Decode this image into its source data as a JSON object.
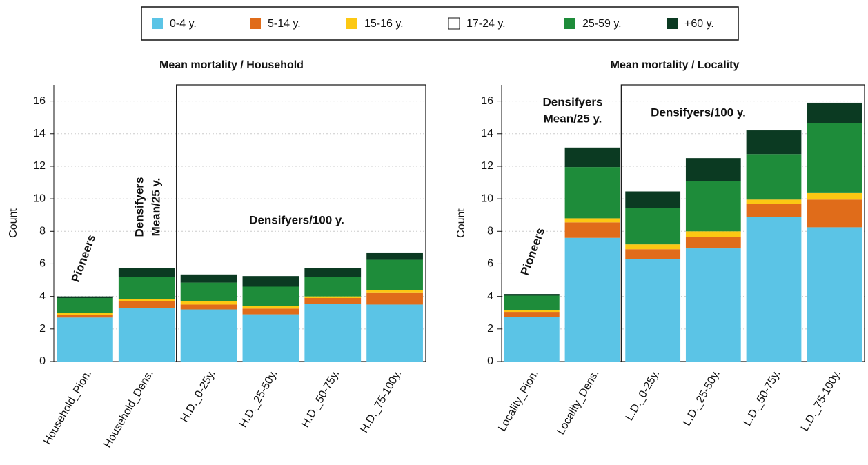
{
  "chart_data": [
    {
      "type": "stacked-bar",
      "title": "Mean mortality / Household",
      "ylabel": "Count",
      "categories": [
        "Household_Pion.",
        "Household_Dens.",
        "H.D._0-25y.",
        "H.D._25-50y.",
        "H.D._50-75y.",
        "H.D._75-100y."
      ],
      "series": [
        {
          "name": "0-4 y.",
          "color": "#5bc4e6",
          "values": [
            2.7,
            3.3,
            3.2,
            2.9,
            3.55,
            3.5
          ]
        },
        {
          "name": "5-14 y.",
          "color": "#e06c1a",
          "values": [
            0.15,
            0.4,
            0.3,
            0.35,
            0.35,
            0.75
          ]
        },
        {
          "name": "15-16 y.",
          "color": "#fcc813",
          "values": [
            0.15,
            0.15,
            0.2,
            0.15,
            0.1,
            0.15
          ]
        },
        {
          "name": "17-24 y.",
          "color": "#ffffff",
          "values": [
            0,
            0,
            0,
            0,
            0,
            0
          ]
        },
        {
          "name": "25-59 y.",
          "color": "#1e8c3a",
          "values": [
            0.9,
            1.35,
            1.15,
            1.2,
            1.2,
            1.85
          ]
        },
        {
          "name": "+60 y.",
          "color": "#0b3a22",
          "values": [
            0.1,
            0.55,
            0.5,
            0.65,
            0.55,
            0.45
          ]
        }
      ],
      "ylim": [
        0,
        17
      ],
      "yticks": [
        0,
        2,
        4,
        6,
        8,
        10,
        12,
        14,
        16
      ],
      "grid": true,
      "annotations": [
        [
          "Pioneers"
        ],
        [
          "Densifyers",
          "Mean/25 y."
        ],
        [
          "Densifyers/100 y."
        ]
      ]
    },
    {
      "type": "stacked-bar",
      "title": "Mean mortality / Locality",
      "ylabel": "Count",
      "categories": [
        "Locality_Pion.",
        "Locality_Dens.",
        "L.D._0-25y.",
        "L.D._25-50y.",
        "L.D._50-75y.",
        "L.D._75-100y."
      ],
      "series": [
        {
          "name": "0-4 y.",
          "color": "#5bc4e6",
          "values": [
            2.75,
            7.6,
            6.3,
            6.95,
            8.9,
            8.25
          ]
        },
        {
          "name": "5-14 y.",
          "color": "#e06c1a",
          "values": [
            0.3,
            0.95,
            0.6,
            0.7,
            0.8,
            1.7
          ]
        },
        {
          "name": "15-16 y.",
          "color": "#fcc813",
          "values": [
            0.1,
            0.25,
            0.3,
            0.35,
            0.25,
            0.4
          ]
        },
        {
          "name": "17-24 y.",
          "color": "#ffffff",
          "values": [
            0,
            0,
            0,
            0,
            0,
            0
          ]
        },
        {
          "name": "25-59 y.",
          "color": "#1e8c3a",
          "values": [
            0.9,
            3.15,
            2.25,
            3.1,
            2.8,
            4.3
          ]
        },
        {
          "name": "+60 y.",
          "color": "#0b3a22",
          "values": [
            0.1,
            1.2,
            1.0,
            1.4,
            1.45,
            1.25
          ]
        }
      ],
      "ylim": [
        0,
        17
      ],
      "yticks": [
        0,
        2,
        4,
        6,
        8,
        10,
        12,
        14,
        16
      ],
      "grid": true,
      "annotations": [
        [
          "Pioneers"
        ],
        [
          "Densifyers",
          "Mean/25 y."
        ],
        [
          "Densifyers/100 y."
        ]
      ]
    }
  ]
}
